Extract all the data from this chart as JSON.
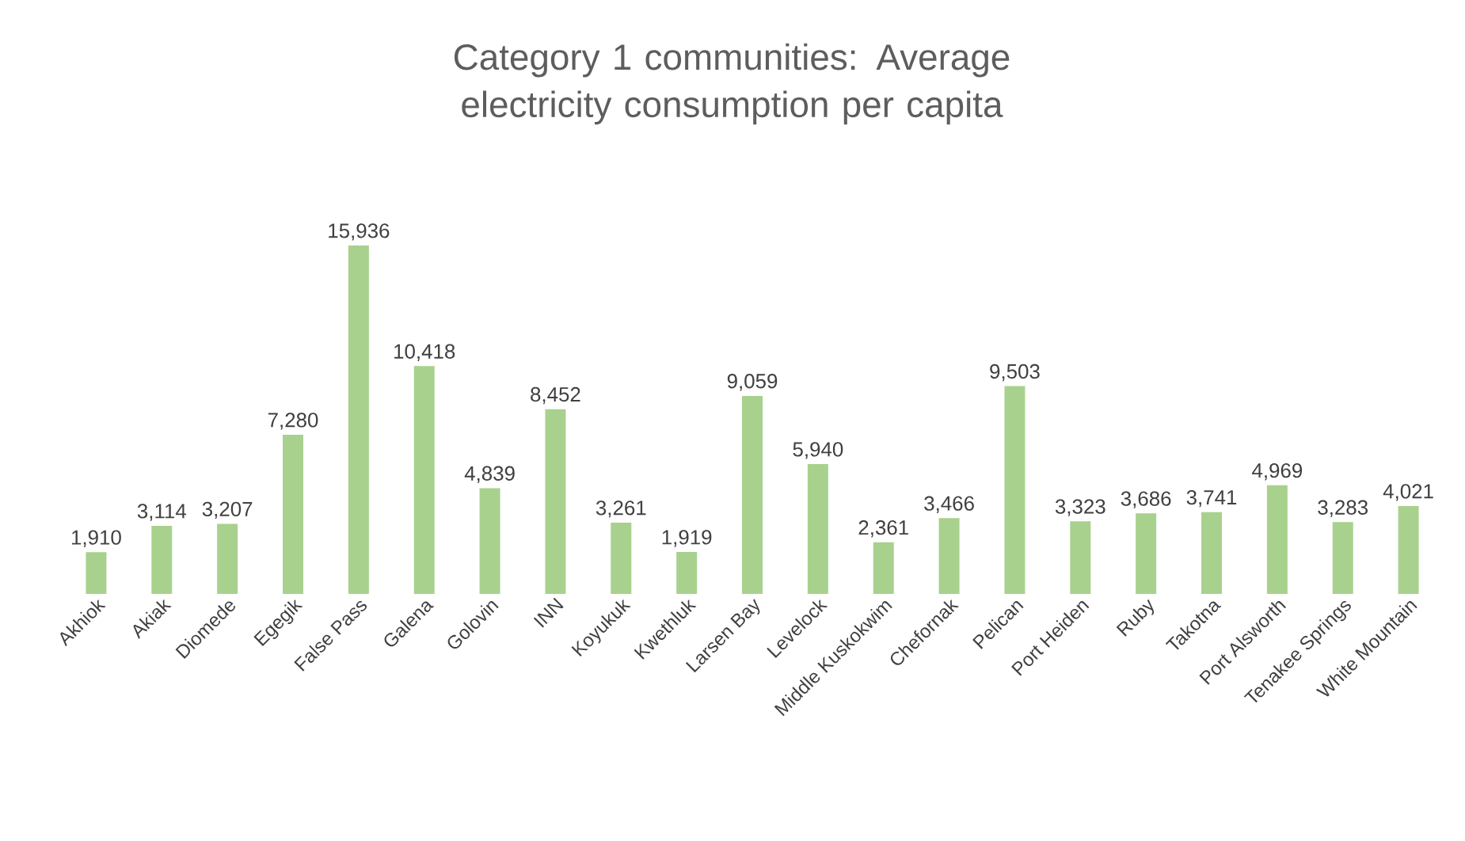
{
  "chart_data": {
    "type": "bar",
    "title": "Category 1 communities: Average electricity consumption per capita",
    "categories": [
      "Akhiok",
      "Akiak",
      "Diomede",
      "Egegik",
      "False Pass",
      "Galena",
      "Golovin",
      "INN",
      "Koyukuk",
      "Kwethluk",
      "Larsen Bay",
      "Levelock",
      "Middle Kuskokwim",
      "Chefornak",
      "Pelican",
      "Port Heiden",
      "Ruby",
      "Takotna",
      "Port Alsworth",
      "Tenakee Springs",
      "White Mountain"
    ],
    "values": [
      1910,
      3114,
      3207,
      7280,
      15936,
      10418,
      4839,
      8452,
      3261,
      1919,
      9059,
      5940,
      2361,
      3466,
      9503,
      3323,
      3686,
      3741,
      4969,
      3283,
      4021
    ],
    "value_labels": [
      "1,910",
      "3,114",
      "3,207",
      "7,280",
      "15,936",
      "10,418",
      "4,839",
      "8,452",
      "3,261",
      "1,919",
      "9,059",
      "5,940",
      "2,361",
      "3,466",
      "9,503",
      "3,323",
      "3,686",
      "3,741",
      "4,969",
      "3,283",
      "4,021"
    ],
    "color": "#a9d18e"
  }
}
